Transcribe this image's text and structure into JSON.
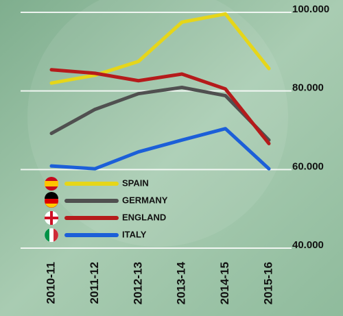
{
  "chart_data": {
    "type": "line",
    "categories": [
      "2010-11",
      "2011-12",
      "2012-13",
      "2013-14",
      "2014-15",
      "2015-16"
    ],
    "series": [
      {
        "name": "SPAIN",
        "color": "#e6d619",
        "values": [
          82000,
          84000,
          87500,
          97500,
          99600,
          85700
        ]
      },
      {
        "name": "GERMANY",
        "color": "#505050",
        "values": [
          69200,
          75300,
          79300,
          80900,
          78800,
          67500
        ]
      },
      {
        "name": "ENGLAND",
        "color": "#b51b1b",
        "values": [
          85400,
          84500,
          82600,
          84300,
          80500,
          66600
        ]
      },
      {
        "name": "ITALY",
        "color": "#1c5fd8",
        "values": [
          60900,
          60200,
          64500,
          67500,
          70400,
          60200
        ]
      }
    ],
    "ylim": [
      40000,
      100000
    ],
    "yticks": [
      {
        "value": 40000,
        "label": "40.000"
      },
      {
        "value": 60000,
        "label": "60.000"
      },
      {
        "value": 80000,
        "label": "80.000"
      },
      {
        "value": 100000,
        "label": "100.000"
      }
    ],
    "grid": true
  }
}
